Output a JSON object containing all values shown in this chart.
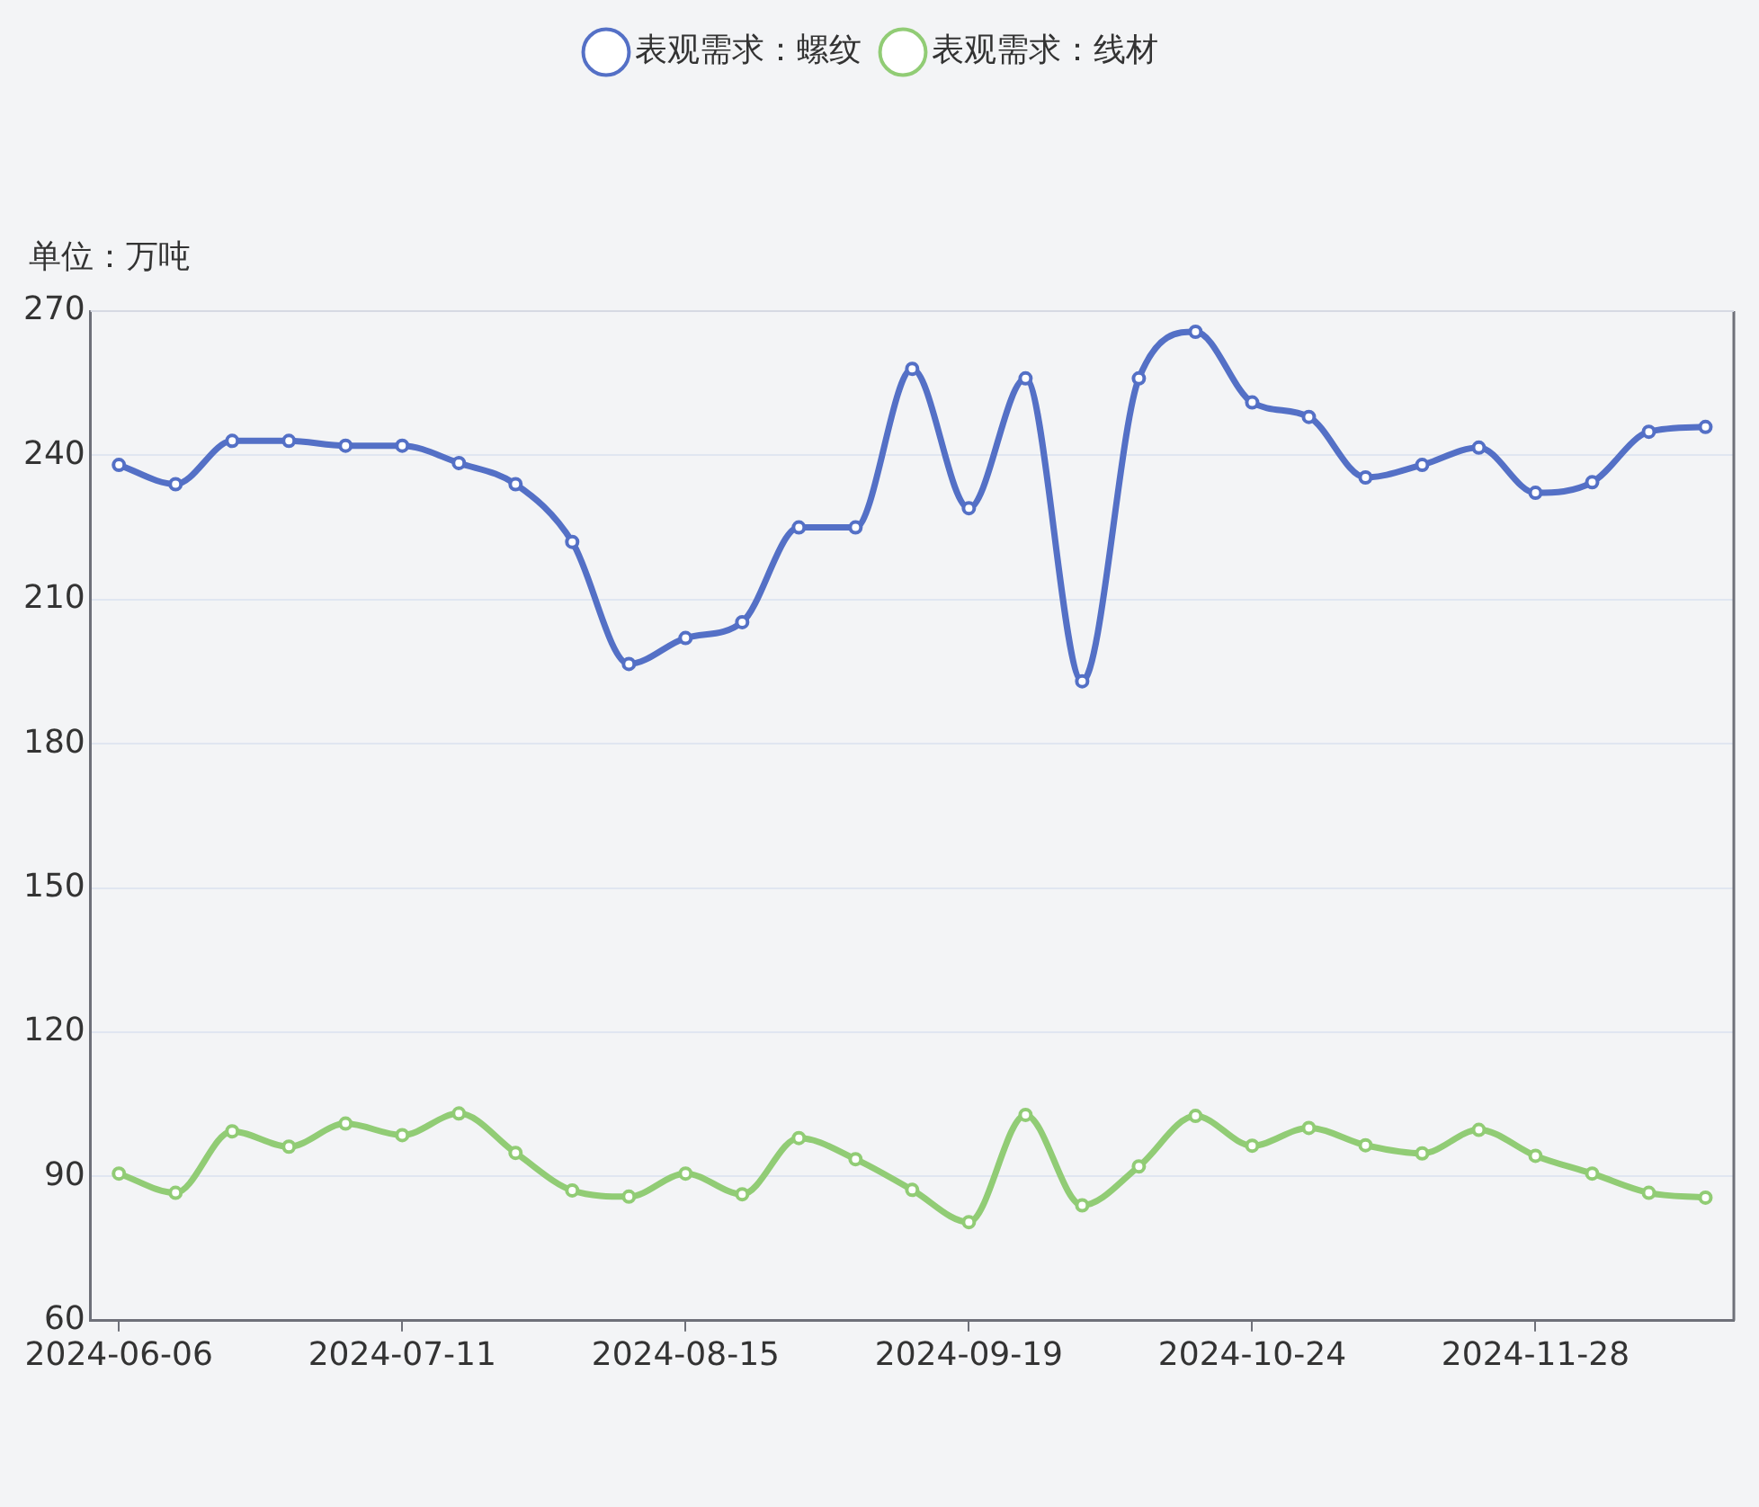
{
  "chart_data": {
    "type": "line",
    "ylabel": "单位：万吨",
    "categories": [
      "2024-06-06",
      null,
      null,
      null,
      null,
      "2024-07-11",
      null,
      null,
      null,
      null,
      "2024-08-15",
      null,
      null,
      null,
      null,
      "2024-09-19",
      null,
      null,
      null,
      null,
      "2024-10-24",
      null,
      null,
      null,
      null,
      "2024-11-28",
      null,
      null,
      null
    ],
    "series": [
      {
        "name": "表观需求：螺纹",
        "color": "#5470c6",
        "values": [
          238,
          234,
          243,
          243,
          242,
          242,
          238.4,
          234,
          222,
          196.6,
          202,
          205.3,
          225,
          225,
          258,
          229,
          256,
          193,
          256,
          265.7,
          251,
          248,
          235.4,
          238,
          241.6,
          232.2,
          234.4,
          244.9,
          245.9
        ]
      },
      {
        "name": "表观需求：线材",
        "color": "#91cc75",
        "values": [
          90.6,
          86.6,
          99.4,
          96.2,
          101,
          98.6,
          103.1,
          94.9,
          87.1,
          85.8,
          90.6,
          86.3,
          98,
          93.6,
          87.2,
          80.5,
          102.8,
          84,
          92.1,
          102.6,
          96.4,
          100.1,
          96.5,
          94.8,
          99.7,
          94.3,
          90.6,
          86.6,
          85.6
        ]
      }
    ],
    "ylim": [
      60,
      270
    ],
    "yticks": [
      60,
      90,
      120,
      150,
      180,
      210,
      240,
      270
    ],
    "grid": "y",
    "legend": "top",
    "marker": "circle",
    "line_style": "solid"
  }
}
